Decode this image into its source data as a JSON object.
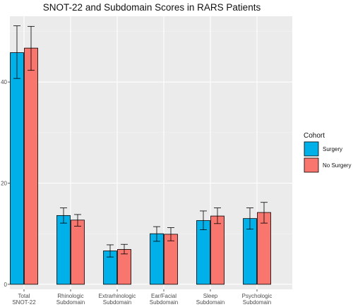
{
  "chart_data": {
    "type": "bar",
    "title": "SNOT-22 and Subdomain Scores in RARS Patients",
    "xlabel": "",
    "ylabel": "",
    "categories": [
      [
        "Total",
        "SNOT-22"
      ],
      [
        "Rhinologic",
        "Subdomain"
      ],
      [
        "Extrarhinologic",
        "Subdomain"
      ],
      [
        "Ear/Facial",
        "Subdomain"
      ],
      [
        "Sleep",
        "Subdomain"
      ],
      [
        "Psychologic",
        "Subdomain"
      ]
    ],
    "series": [
      {
        "name": "Surgery",
        "color": "#00b0e8",
        "values": [
          45.8,
          13.6,
          6.6,
          10.0,
          12.6,
          13.0
        ],
        "error_low": [
          40.7,
          12.1,
          5.4,
          8.5,
          10.8,
          10.9
        ],
        "error_high": [
          51.1,
          15.1,
          7.8,
          11.4,
          14.5,
          15.1
        ]
      },
      {
        "name": "No Surgery",
        "color": "#f8766d",
        "values": [
          46.7,
          12.7,
          6.9,
          9.9,
          13.5,
          14.2
        ],
        "error_low": [
          42.3,
          11.5,
          6.0,
          8.6,
          12.0,
          12.1
        ],
        "error_high": [
          51.0,
          13.8,
          7.9,
          11.2,
          15.1,
          16.2
        ]
      }
    ],
    "y_ticks": [
      0,
      20,
      40
    ],
    "ylim": [
      -1,
      53
    ],
    "grid": true,
    "legend": {
      "title": "Cohort",
      "position": "right"
    }
  }
}
